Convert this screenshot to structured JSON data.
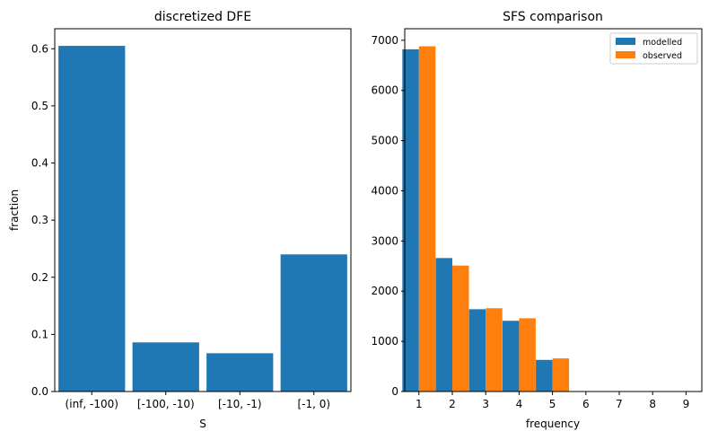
{
  "chart_data": [
    {
      "type": "bar",
      "title": "discretized DFE",
      "xlabel": "S",
      "ylabel": "fraction",
      "categories": [
        "(inf, -100)",
        "[-100, -10)",
        "[-10, -1)",
        "[-1, 0)"
      ],
      "values": [
        0.605,
        0.086,
        0.067,
        0.24
      ],
      "ylim": [
        0,
        0.635
      ],
      "yticks": [
        "0.0",
        "0.1",
        "0.2",
        "0.3",
        "0.4",
        "0.5",
        "0.6"
      ],
      "color": "#1f77b4",
      "grid": false
    },
    {
      "type": "bar",
      "title": "SFS comparison",
      "xlabel": "frequency",
      "ylabel": "",
      "categories": [
        "1",
        "2",
        "3",
        "4",
        "5",
        "6",
        "7",
        "8",
        "9"
      ],
      "series": [
        {
          "name": "modelled",
          "values": [
            6820,
            2660,
            1640,
            1410,
            630,
            0,
            0,
            0,
            0
          ],
          "color": "#1f77b4"
        },
        {
          "name": "observed",
          "values": [
            6880,
            2510,
            1660,
            1460,
            660,
            0,
            0,
            0,
            0
          ],
          "color": "#ff7f0e"
        }
      ],
      "ylim": [
        0,
        7230
      ],
      "yticks": [
        "0",
        "1000",
        "2000",
        "3000",
        "4000",
        "5000",
        "6000",
        "7000"
      ],
      "legend_position": "top-right",
      "grid": false
    }
  ]
}
